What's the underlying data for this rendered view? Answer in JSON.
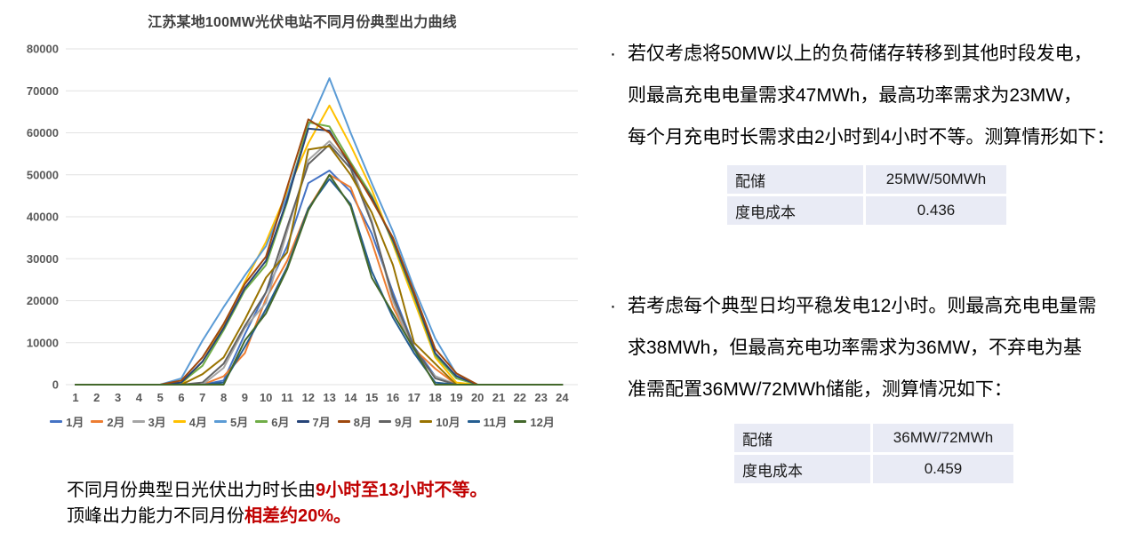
{
  "chart_data": {
    "type": "line",
    "title": "江苏某地100MW光伏电站不同月份典型出力曲线",
    "x": [
      1,
      2,
      3,
      4,
      5,
      6,
      7,
      8,
      9,
      10,
      11,
      12,
      13,
      14,
      15,
      16,
      17,
      18,
      19,
      20,
      21,
      22,
      23,
      24
    ],
    "xlabel": "",
    "ylabel": "",
    "ylim": [
      0,
      80000
    ],
    "ytick_step": 10000,
    "grid": true,
    "legend_position": "bottom",
    "axis_label_color": "#595959",
    "grid_color": "#E2E2E2",
    "series": [
      {
        "name": "1月",
        "color": "#4472C4",
        "values": [
          0,
          0,
          0,
          0,
          0,
          0,
          0,
          1000,
          12000,
          22000,
          33000,
          48000,
          51000,
          46000,
          36000,
          22000,
          9000,
          2000,
          0,
          0,
          0,
          0,
          0,
          0
        ]
      },
      {
        "name": "2月",
        "color": "#ED7D31",
        "values": [
          0,
          0,
          0,
          0,
          0,
          0,
          0,
          2000,
          7500,
          20500,
          29500,
          42000,
          50000,
          47000,
          34000,
          18500,
          8500,
          3800,
          0,
          0,
          0,
          0,
          0,
          0
        ]
      },
      {
        "name": "3月",
        "color": "#A5A5A5",
        "values": [
          0,
          0,
          0,
          0,
          0,
          0,
          0,
          4000,
          13500,
          19500,
          36500,
          53500,
          58000,
          52500,
          39000,
          20000,
          7500,
          2000,
          0,
          0,
          0,
          0,
          0,
          0
        ]
      },
      {
        "name": "4月",
        "color": "#FFC000",
        "values": [
          0,
          0,
          0,
          0,
          0,
          0,
          5500,
          14000,
          24500,
          34000,
          46000,
          57500,
          66500,
          57000,
          46500,
          33500,
          20000,
          6500,
          500,
          0,
          0,
          0,
          0,
          0
        ]
      },
      {
        "name": "5月",
        "color": "#5B9BD5",
        "values": [
          0,
          0,
          0,
          0,
          0,
          1500,
          10500,
          18500,
          26000,
          33000,
          45000,
          61500,
          73000,
          60000,
          48000,
          36500,
          23000,
          11000,
          2500,
          0,
          0,
          0,
          0,
          0
        ]
      },
      {
        "name": "6月",
        "color": "#70AD47",
        "values": [
          0,
          0,
          0,
          0,
          0,
          500,
          4500,
          13000,
          22500,
          28500,
          43500,
          62500,
          61500,
          53000,
          45000,
          34000,
          21000,
          7000,
          1500,
          0,
          0,
          0,
          0,
          0
        ]
      },
      {
        "name": "7月",
        "color": "#264478",
        "values": [
          0,
          0,
          0,
          0,
          0,
          500,
          5500,
          13500,
          23000,
          29500,
          44000,
          61000,
          60500,
          52000,
          44500,
          34500,
          21500,
          7500,
          2000,
          0,
          0,
          0,
          0,
          0
        ]
      },
      {
        "name": "8月",
        "color": "#9E480E",
        "values": [
          0,
          0,
          0,
          0,
          0,
          1000,
          6500,
          14500,
          24000,
          30500,
          47000,
          63200,
          60000,
          52500,
          44000,
          35000,
          22000,
          8500,
          2700,
          0,
          0,
          0,
          0,
          0
        ]
      },
      {
        "name": "9月",
        "color": "#636363",
        "values": [
          0,
          0,
          0,
          0,
          0,
          0,
          500,
          5000,
          14000,
          22000,
          37500,
          52500,
          57200,
          51500,
          38500,
          21000,
          8800,
          1500,
          0,
          0,
          0,
          0,
          0,
          0
        ]
      },
      {
        "name": "10月",
        "color": "#997300",
        "values": [
          0,
          0,
          0,
          0,
          0,
          0,
          2500,
          6500,
          15500,
          25500,
          31500,
          56000,
          56800,
          50000,
          41000,
          28500,
          10000,
          5000,
          0,
          0,
          0,
          0,
          0,
          0
        ]
      },
      {
        "name": "11月",
        "color": "#255E91",
        "values": [
          0,
          0,
          0,
          0,
          0,
          0,
          0,
          500,
          9000,
          18000,
          28000,
          42000,
          49000,
          43000,
          27000,
          16000,
          7500,
          500,
          0,
          0,
          0,
          0,
          0,
          0
        ]
      },
      {
        "name": "12月",
        "color": "#43682B",
        "values": [
          0,
          0,
          0,
          0,
          0,
          0,
          0,
          0,
          10500,
          17000,
          27500,
          41500,
          50000,
          42500,
          25500,
          17000,
          8500,
          0,
          0,
          0,
          0,
          0,
          0,
          0
        ]
      }
    ]
  },
  "summary": {
    "red_color": "#C00000",
    "line1_black": "不同月份典型日光伏出力时长由",
    "line1_red": "9小时至13小时不等。",
    "line2_black": "顶峰出力能力不同月份",
    "line2_red": "相差约20%。"
  },
  "right_panel": {
    "bullet_marker": "·",
    "bullet1_text": "若仅考虑将50MW以上的负荷储存转移到其他时段发电，\n则最高充电电量需求47MWh，最高功率需求为23MW，\n每个月充电时长需求由2小时到4小时不等。测算情形如下：",
    "table1": {
      "rows": [
        [
          "配储",
          "25MW/50MWh"
        ],
        [
          "度电成本",
          "0.436"
        ]
      ]
    },
    "bullet2_text": "若考虑每个典型日均平稳发电12小时。则最高充电电量需\n求38MWh，但最高充电功率需求为36MW，不弃电为基\n准需配置36MW/72MWh储能，测算情况如下：",
    "table2": {
      "rows": [
        [
          "配储",
          "36MW/72MWh"
        ],
        [
          "度电成本",
          "0.459"
        ]
      ]
    }
  }
}
